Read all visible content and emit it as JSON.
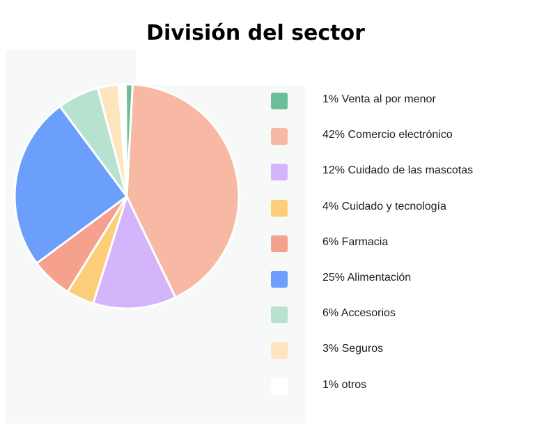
{
  "title": "División del sector",
  "chart_data": {
    "type": "pie",
    "title": "División del sector",
    "slices": [
      {
        "label": "1% Venta al por menor",
        "value": 1,
        "color": "#6abf98"
      },
      {
        "label": "42% Comercio electrónico",
        "value": 42,
        "color": "#f7b9a3"
      },
      {
        "label": "12% Cuidado de las mascotas",
        "value": 12,
        "color": "#d4b4fb"
      },
      {
        "label": "4% Cuidado y tecnología",
        "value": 4,
        "color": "#fdce79"
      },
      {
        "label": "6% Farmacia",
        "value": 6,
        "color": "#f6a08e"
      },
      {
        "label": "25% Alimentación",
        "value": 25,
        "color": "#6b9ffb"
      },
      {
        "label": "6% Accesorios",
        "value": 6,
        "color": "#b8e2d0"
      },
      {
        "label": "3% Seguros",
        "value": 3,
        "color": "#fde5bd"
      },
      {
        "label": "1% otros",
        "value": 1,
        "color": "#ffffff"
      }
    ],
    "legend": "right"
  }
}
